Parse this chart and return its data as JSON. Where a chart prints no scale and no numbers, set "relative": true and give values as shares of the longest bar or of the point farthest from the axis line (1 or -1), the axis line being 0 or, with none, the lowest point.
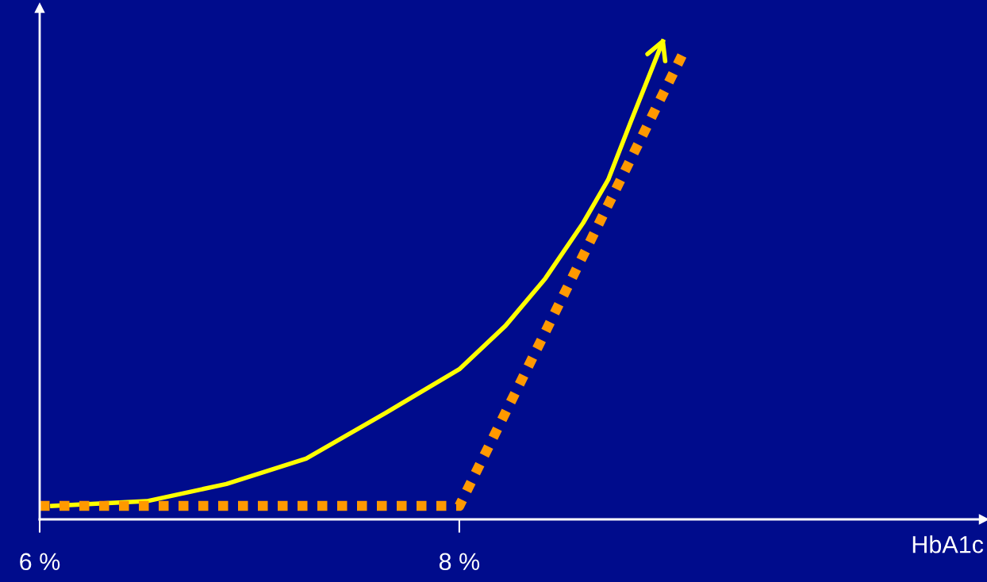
{
  "chart_data": {
    "type": "line",
    "relative": true,
    "xlabel": "HbA1c",
    "xlim": [
      6,
      10.5
    ],
    "xticks": [
      {
        "value": 6,
        "label": "6 %"
      },
      {
        "value": 8,
        "label": "8 %"
      }
    ],
    "series": [
      {
        "color": "#ffff00",
        "line_style": "solid",
        "x": [
          6.06,
          6.51,
          6.89,
          7.27,
          7.65,
          8.0,
          8.22,
          8.41,
          8.59,
          8.71,
          8.82,
          8.97
        ],
        "values": [
          0.028,
          0.038,
          0.074,
          0.127,
          0.223,
          0.314,
          0.405,
          0.504,
          0.62,
          0.711,
          0.835,
          1.0
        ]
      },
      {
        "color": "#ff9900",
        "line_style": "dotted",
        "x": [
          6.0,
          8.0,
          9.08
        ],
        "values": [
          0.028,
          0.028,
          0.987
        ]
      }
    ],
    "legend": false,
    "grid": false,
    "tick_labels": "x",
    "marker": "none"
  }
}
